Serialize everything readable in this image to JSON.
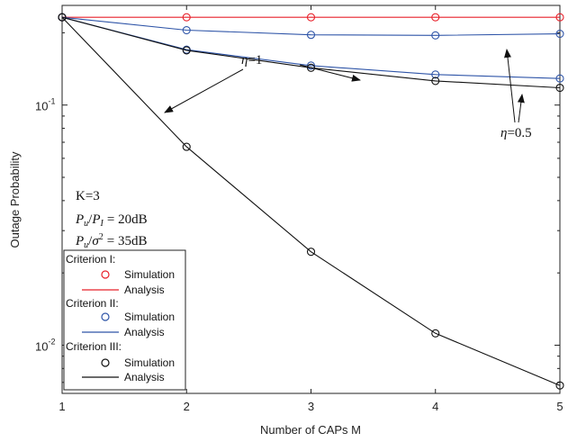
{
  "chart_data": {
    "type": "line",
    "xlabel": "Number of CAPs M",
    "ylabel": "Outage Probability",
    "x": [
      1,
      2,
      3,
      4,
      5
    ],
    "xlim": [
      1,
      5
    ],
    "ylim": [
      0.0063,
      0.26
    ],
    "yscale": "log",
    "x_ticks": [
      {
        "value": 1,
        "label": "1"
      },
      {
        "value": 2,
        "label": "2"
      },
      {
        "value": 3,
        "label": "3"
      },
      {
        "value": 4,
        "label": "4"
      },
      {
        "value": 5,
        "label": "5"
      }
    ],
    "y_ticks": [
      {
        "value": 0.1,
        "base": "10",
        "exp": "-1"
      },
      {
        "value": 0.01,
        "base": "10",
        "exp": "-2"
      }
    ],
    "grid": false,
    "colors": {
      "criterion1": "#e8202a",
      "criterion2": "#2f55a8",
      "criterion3": "#111111"
    },
    "series": [
      {
        "group": "criterion1",
        "eta": "1",
        "simulation": [
          0.232,
          0.232,
          0.232,
          0.232,
          0.232
        ],
        "analysis": [
          0.232,
          0.232,
          0.232,
          0.232,
          0.232
        ]
      },
      {
        "group": "criterion2",
        "eta": "0.5",
        "simulation": [
          0.232,
          0.205,
          0.196,
          0.195,
          0.198
        ],
        "analysis": [
          0.232,
          0.205,
          0.196,
          0.195,
          0.198
        ]
      },
      {
        "group": "criterion2",
        "eta": "1",
        "simulation": [
          0.232,
          0.17,
          0.146,
          0.134,
          0.129
        ],
        "analysis": [
          0.232,
          0.17,
          0.146,
          0.134,
          0.129
        ]
      },
      {
        "group": "criterion3",
        "eta": "0.5",
        "simulation": [
          0.232,
          0.169,
          0.143,
          0.126,
          0.118
        ],
        "analysis": [
          0.232,
          0.169,
          0.143,
          0.126,
          0.118
        ]
      },
      {
        "group": "criterion3",
        "eta": "1",
        "simulation": [
          0.232,
          0.067,
          0.0245,
          0.0112,
          0.0068
        ],
        "analysis": [
          0.232,
          0.067,
          0.0245,
          0.0112,
          0.0068
        ]
      }
    ],
    "annotations": {
      "k_line": "K=3",
      "pu": "P",
      "pu_sub": "u",
      "slash": "/",
      "pi": "P",
      "pi_sub": "I",
      "eq1": "= 20dB",
      "sigma": "σ",
      "sigma_sup": "2",
      "eq2": "= 35dB",
      "eta_symbol": "η",
      "eta1_value": "=1",
      "eta05_value": "=0.5"
    },
    "legend": {
      "placement": "bottom-left",
      "groups": [
        {
          "title": "Criterion I:",
          "key": "criterion1",
          "sim": "Simulation",
          "ana": "Analysis"
        },
        {
          "title": "Criterion II:",
          "key": "criterion2",
          "sim": "Simulation",
          "ana": "Analysis"
        },
        {
          "title": "Criterion III:",
          "key": "criterion3",
          "sim": "Simulation",
          "ana": "Analysis"
        }
      ]
    }
  }
}
